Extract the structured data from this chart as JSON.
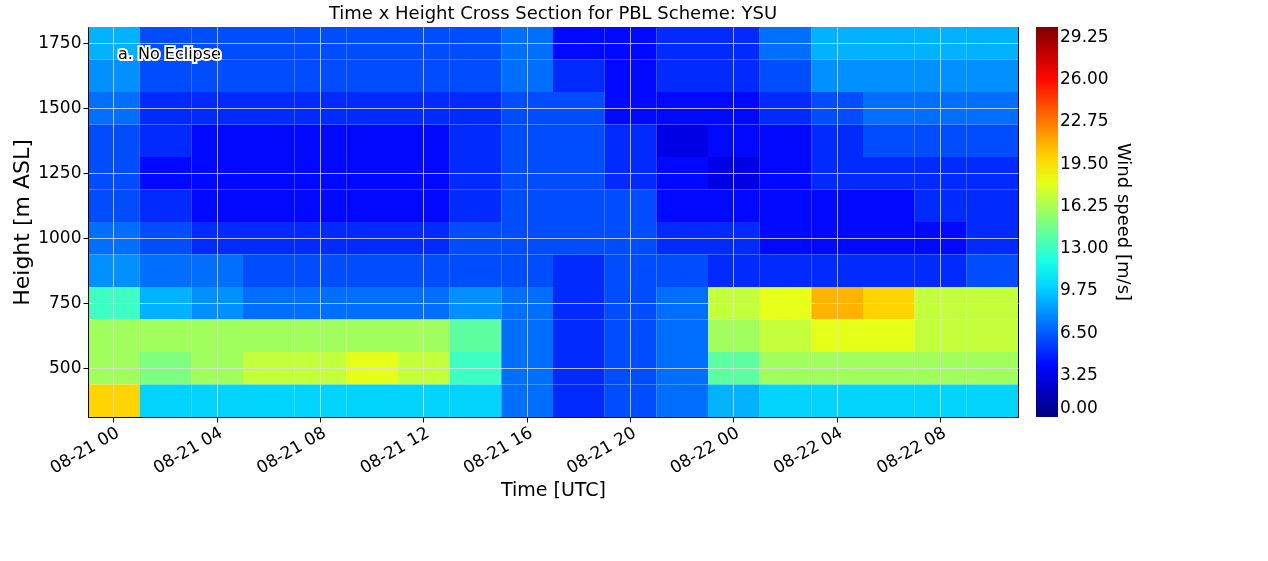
{
  "chart_data": {
    "type": "heatmap",
    "title": "Time x Height Cross Section for PBL Scheme: YSU",
    "xlabel": "Time [UTC]",
    "ylabel": "Height [m ASL]",
    "clabel": "Wind speed [m/s]",
    "categories": [
      "08-21 00",
      null,
      "08-21 04",
      null,
      "08-21 08",
      null,
      "08-21 12",
      null,
      "08-21 16",
      null,
      "08-21 20",
      null,
      "08-22 00",
      null,
      "08-22 04",
      null,
      "08-22 08",
      null
    ],
    "y_categories": [
      "1750",
      null,
      "1500",
      null,
      "1250",
      null,
      "1000",
      null,
      "750",
      null,
      "500",
      null
    ],
    "cells": [
      [
        9,
        6,
        6,
        6,
        6,
        6,
        6,
        6,
        7,
        4,
        4,
        5,
        5,
        7,
        9,
        9,
        9,
        9
      ],
      [
        8,
        6,
        6,
        6,
        6,
        6,
        6,
        6,
        7,
        5,
        4,
        5,
        5,
        6,
        8,
        8,
        8,
        8
      ],
      [
        7,
        5,
        5,
        5,
        5,
        5,
        5,
        5,
        6,
        6,
        4,
        4,
        4,
        5,
        6,
        7,
        7,
        7
      ],
      [
        6,
        5,
        4,
        4,
        4,
        4,
        4,
        5,
        6,
        6,
        5,
        3,
        4,
        4,
        5,
        6,
        6,
        6
      ],
      [
        6,
        4,
        4,
        4,
        4,
        4,
        4,
        5,
        6,
        6,
        5,
        4,
        3,
        4,
        5,
        5,
        5,
        5
      ],
      [
        6,
        5,
        4,
        4,
        4,
        4,
        4,
        5,
        6,
        6,
        6,
        4,
        4,
        4,
        4,
        4,
        5,
        5
      ],
      [
        7,
        6,
        5,
        5,
        5,
        5,
        5,
        6,
        6,
        6,
        6,
        5,
        5,
        4,
        4,
        4,
        4,
        5
      ],
      [
        8,
        7,
        7,
        6,
        6,
        6,
        6,
        6,
        6,
        5,
        6,
        6,
        5,
        5,
        5,
        5,
        5,
        6
      ],
      [
        13,
        9,
        8,
        7,
        7,
        7,
        7,
        8,
        7,
        5,
        6,
        7,
        17,
        18,
        21,
        20,
        17,
        17
      ],
      [
        16,
        16,
        16,
        16,
        16,
        16,
        16,
        14,
        7,
        5,
        6,
        7,
        16,
        17,
        18,
        18,
        17,
        17
      ],
      [
        16,
        15,
        16,
        17,
        17,
        18,
        17,
        13,
        7,
        5,
        6,
        7,
        14,
        16,
        16,
        16,
        16,
        16
      ],
      [
        20,
        10,
        10,
        10,
        10,
        10,
        10,
        10,
        7,
        5,
        6,
        7,
        9,
        10,
        10,
        10,
        10,
        10
      ]
    ],
    "clim": [
      0,
      30
    ],
    "cticks": [
      {
        "value": 0,
        "label": "0.00"
      },
      3.25,
      {
        "value": 6.5,
        "label": "6.50"
      },
      9.75,
      {
        "value": 13,
        "label": "13.00"
      },
      16.25,
      {
        "value": 19.5,
        "label": "19.50"
      },
      22.75,
      {
        "value": 26,
        "label": "26.00"
      },
      29.25
    ],
    "grid": true,
    "annotations": [
      "a.   No Eclipse"
    ]
  }
}
